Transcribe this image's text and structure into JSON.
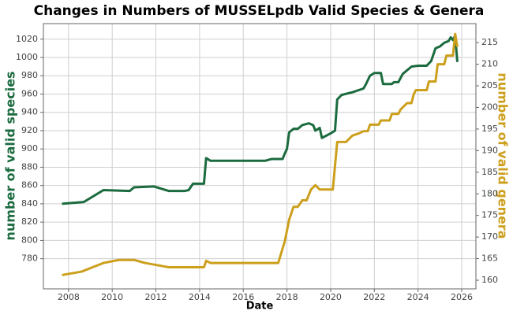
{
  "chart_data": {
    "type": "line",
    "title": "Changes in Numbers of MUSSELpdb Valid Species & Genera",
    "x_label": "Date",
    "y_label": "number of valid species",
    "y2_label": "number of valid genera",
    "xlim": [
      2006.85,
      2026.65
    ],
    "xticks": [
      2008,
      2010,
      2012,
      2014,
      2016,
      2018,
      2020,
      2022,
      2024,
      2026
    ],
    "ylim": [
      747,
      1037
    ],
    "yticks": [
      780,
      800,
      820,
      840,
      860,
      880,
      900,
      920,
      940,
      960,
      980,
      1000,
      1020
    ],
    "y2lim": [
      158,
      219.4
    ],
    "y2ticks": [
      160,
      165,
      170,
      175,
      180,
      185,
      190,
      195,
      200,
      205,
      210,
      215
    ],
    "grid": true,
    "series": [
      {
        "name": "number of valid species",
        "color": "#1b6b3f",
        "x": [
          2007.7,
          2008.7,
          2009.6,
          2010.8,
          2011.0,
          2011.9,
          2012.6,
          2013.3,
          2013.5,
          2013.7,
          2014.2,
          2014.3,
          2014.5,
          2015,
          2016,
          2017,
          2017.3,
          2017.8,
          2017.9,
          2018.0,
          2018.1,
          2018.3,
          2018.5,
          2018.7,
          2019.0,
          2019.2,
          2019.3,
          2019.5,
          2019.6,
          2020.0,
          2020.2,
          2020.3,
          2020.5,
          2021.0,
          2021.5,
          2021.6,
          2021.8,
          2022.0,
          2022.3,
          2022.4,
          2022.8,
          2022.9,
          2023.1,
          2023.3,
          2023.5,
          2023.7,
          2024.0,
          2024.4,
          2024.6,
          2024.8,
          2025.0,
          2025.2,
          2025.4,
          2025.5,
          2025.6,
          2025.7,
          2025.8
        ],
        "values": [
          840,
          842,
          855,
          854,
          858,
          859,
          854,
          854,
          855,
          862,
          862,
          890,
          887,
          887,
          887,
          887,
          889,
          889,
          895,
          900,
          918,
          922,
          922,
          926,
          928,
          926,
          920,
          923,
          912,
          917,
          920,
          954,
          959,
          962,
          966,
          970,
          980,
          983,
          983,
          971,
          971,
          973,
          973,
          982,
          986,
          990,
          991,
          991,
          996,
          1010,
          1012,
          1016,
          1018,
          1022,
          1019,
          1024,
          995
        ]
      },
      {
        "name": "number of valid genera",
        "color": "#cc9f1c",
        "axis": "y2",
        "x": [
          2007.7,
          2008.6,
          2009.6,
          2010.3,
          2011.0,
          2011.5,
          2012.6,
          2013.0,
          2014.2,
          2014.3,
          2014.5,
          2015,
          2016,
          2017,
          2017.6,
          2017.9,
          2018.1,
          2018.3,
          2018.5,
          2018.7,
          2018.9,
          2019.1,
          2019.3,
          2019.4,
          2019.5,
          2020.1,
          2020.3,
          2020.7,
          2021.0,
          2021.3,
          2021.5,
          2021.7,
          2021.8,
          2022.2,
          2022.3,
          2022.7,
          2022.8,
          2023.1,
          2023.2,
          2023.4,
          2023.5,
          2023.7,
          2023.8,
          2023.9,
          2024.4,
          2024.5,
          2024.8,
          2024.9,
          2025.2,
          2025.3,
          2025.6,
          2025.7,
          2025.8
        ],
        "values": [
          161.2,
          162,
          164,
          164.7,
          164.7,
          164,
          163,
          163,
          163,
          164.5,
          164,
          164,
          164,
          164,
          164,
          169,
          174,
          177,
          177,
          178.5,
          178.5,
          181,
          182,
          181.5,
          181,
          181,
          192,
          192,
          193.5,
          194,
          194.5,
          194.5,
          196,
          196,
          197,
          197,
          198.5,
          198.5,
          199.5,
          200.5,
          201,
          201,
          203,
          204,
          204,
          206,
          206,
          210,
          210,
          212,
          212,
          217,
          214
        ]
      }
    ]
  }
}
